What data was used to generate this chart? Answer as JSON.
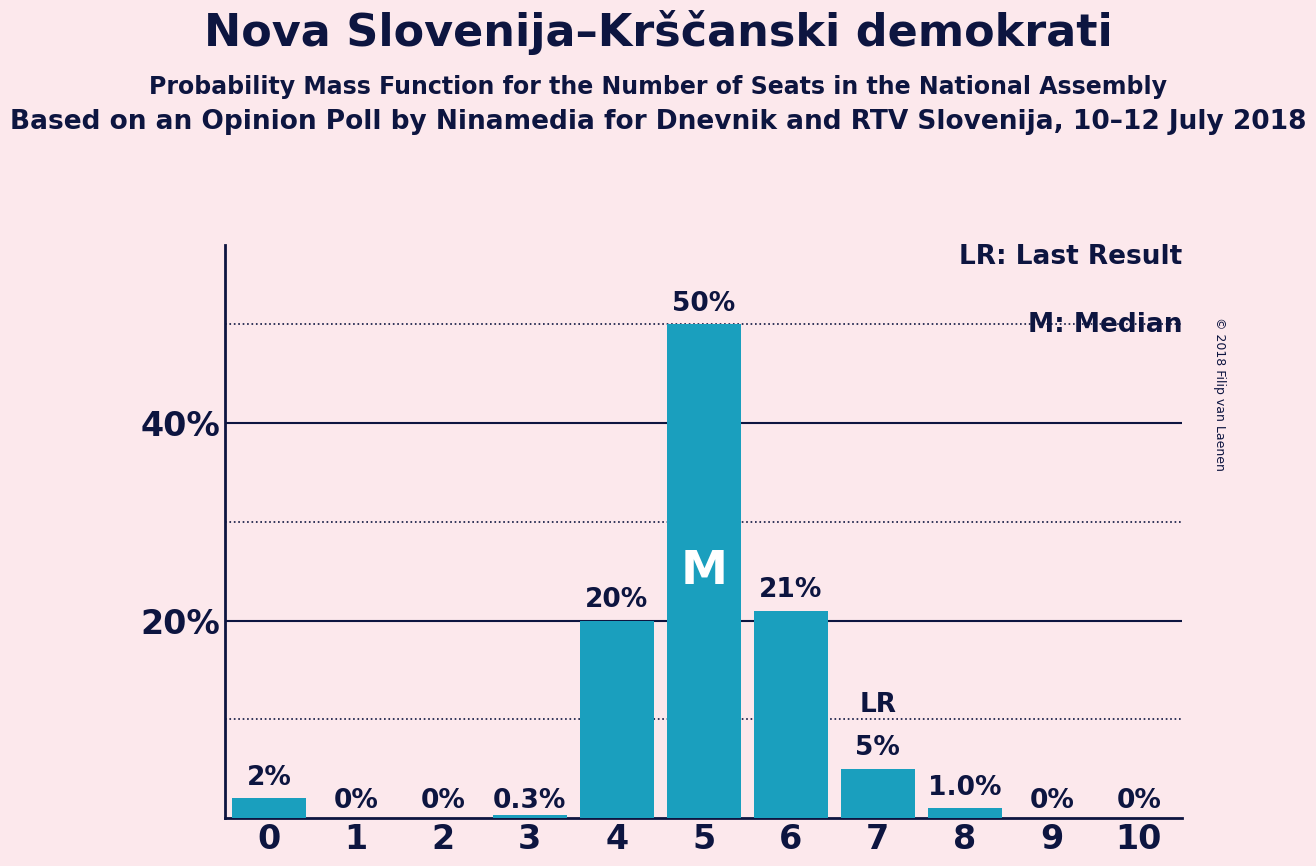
{
  "title": "Nova Slovenija–Krščanski demokrati",
  "subtitle1": "Probability Mass Function for the Number of Seats in the National Assembly",
  "subtitle2": "Based on an Opinion Poll by Ninamedia for Dnevnik and RTV Slovenija, 10–12 July 2018",
  "copyright": "© 2018 Filip van Laenen",
  "categories": [
    0,
    1,
    2,
    3,
    4,
    5,
    6,
    7,
    8,
    9,
    10
  ],
  "values": [
    2.0,
    0.0,
    0.0,
    0.3,
    20.0,
    50.0,
    21.0,
    5.0,
    1.0,
    0.0,
    0.0
  ],
  "value_labels": [
    "2%",
    "0%",
    "0%",
    "0.3%",
    "20%",
    "50%",
    "21%",
    "5%",
    "1.0%",
    "0%",
    "0%"
  ],
  "bar_color": "#1a9fbe",
  "background_color": "#fce8ec",
  "text_color": "#0d1540",
  "median_bar": 5,
  "lr_bar": 7,
  "solid_lines": [
    20.0,
    40.0
  ],
  "dotted_lines": [
    10.0,
    30.0,
    50.0
  ],
  "yticks": [
    20,
    40
  ],
  "ylim": [
    0,
    58
  ],
  "xlim": [
    -0.5,
    10.5
  ],
  "legend_lr": "LR: Last Result",
  "legend_m": "M: Median",
  "title_fontsize": 32,
  "subtitle1_fontsize": 17,
  "subtitle2_fontsize": 19,
  "bar_label_fontsize": 19,
  "ytick_fontsize": 24,
  "xtick_fontsize": 24,
  "legend_fontsize": 19,
  "median_label_fontsize": 34
}
